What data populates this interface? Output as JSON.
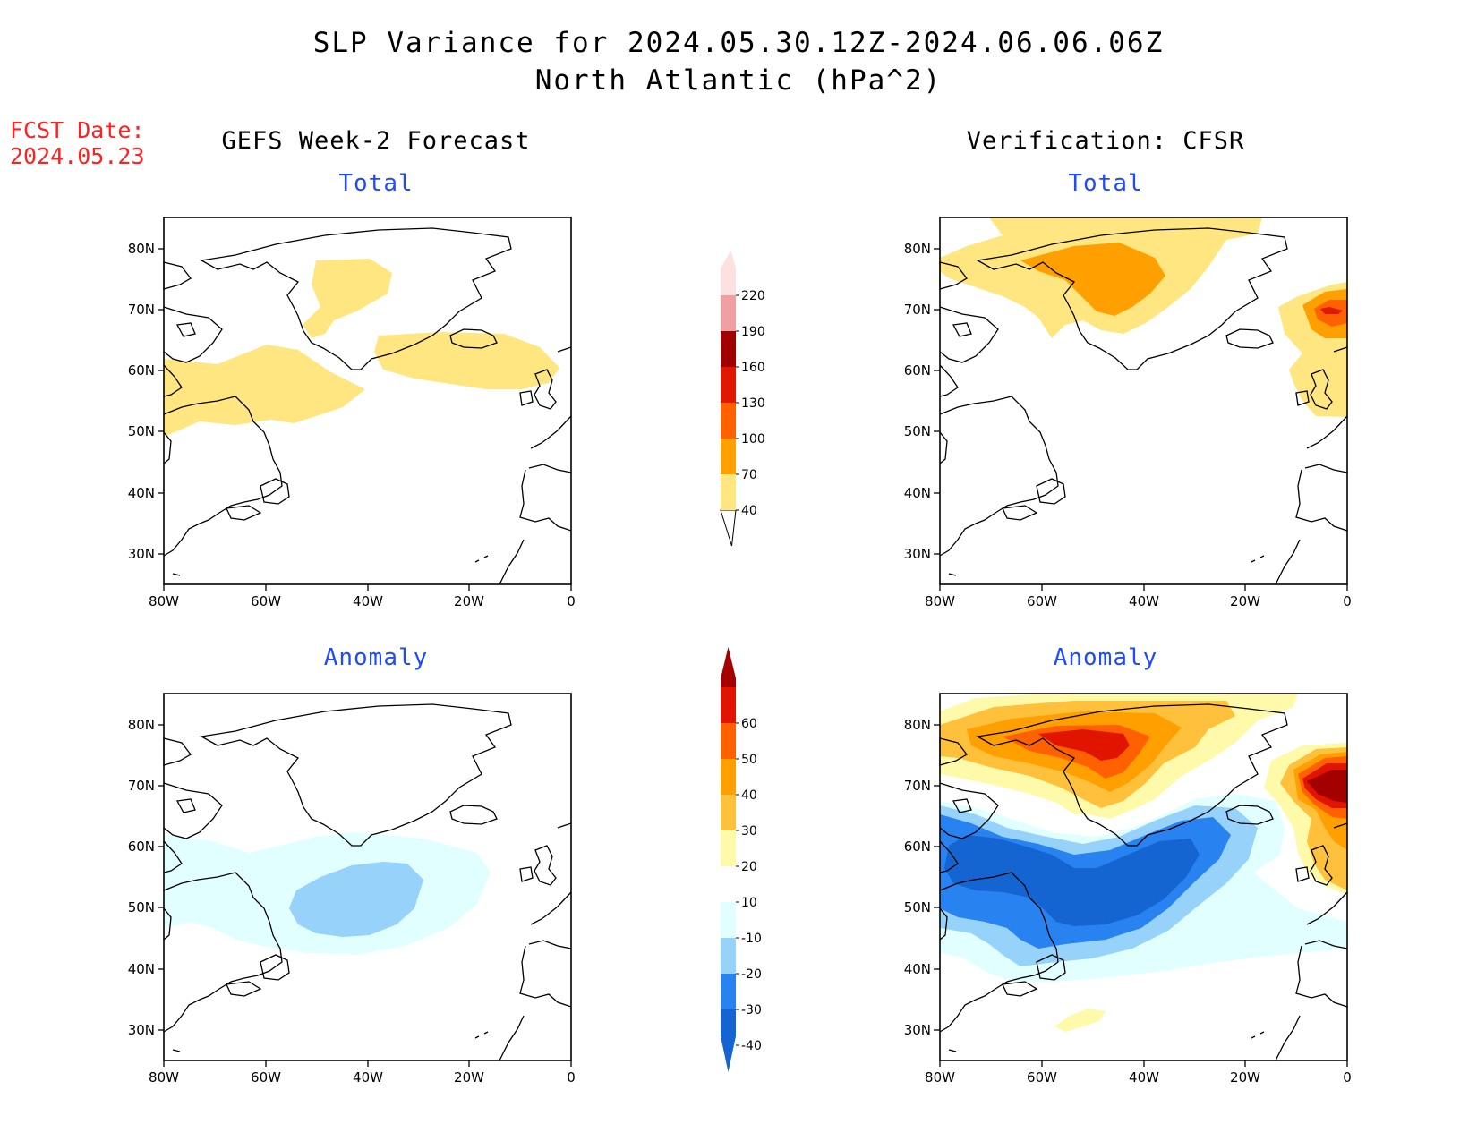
{
  "header": {
    "title_line1": "SLP Variance for 2024.05.30.12Z-2024.06.06.06Z",
    "title_line2": "North Atlantic (hPa^2)",
    "fcst_line1": "FCST Date:",
    "fcst_line2": "2024.05.23"
  },
  "columns": {
    "left": "GEFS Week-2 Forecast",
    "right": "Verification: CFSR"
  },
  "panels": {
    "total": "Total",
    "anomaly": "Anomaly"
  },
  "axes": {
    "lat_labels": [
      "80N",
      "70N",
      "60N",
      "50N",
      "40N",
      "30N"
    ],
    "lon_labels": [
      "80W",
      "60W",
      "40W",
      "20W",
      "0"
    ]
  },
  "colorbar_total": {
    "labels": [
      "40",
      "70",
      "100",
      "130",
      "160",
      "190",
      "220"
    ],
    "colors": [
      "#ffe680",
      "#ffa000",
      "#ff6000",
      "#e01800",
      "#a00000",
      "#f0a0a0",
      "#fde0e0"
    ]
  },
  "colorbar_anomaly": {
    "labels": [
      "-40",
      "-30",
      "-20",
      "-10",
      "10",
      "20",
      "30",
      "40",
      "50",
      "60"
    ],
    "colors": [
      "#1464d2",
      "#2882f0",
      "#96d2fa",
      "#e1ffff",
      "#ffffff",
      "#fffaaa",
      "#ffc03c",
      "#ffa000",
      "#ff6000",
      "#e11400",
      "#a50000"
    ]
  },
  "colors": {
    "title_accent": "#1f4bff",
    "fcst_red": "#ff2020"
  }
}
